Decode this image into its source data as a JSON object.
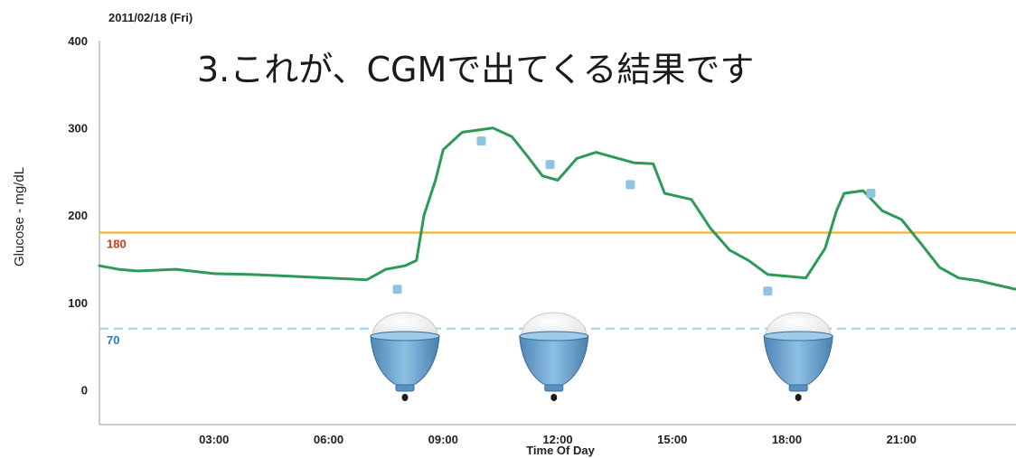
{
  "chart_data": {
    "type": "line",
    "date": "2011/02/18 (Fri)",
    "title": "3.これが、CGMで出てくる結果です",
    "xlabel": "Time Of Day",
    "ylabel": "Glucose - mg/dL",
    "ylim": [
      -40,
      400
    ],
    "xlim": [
      0,
      24
    ],
    "y_ticks": [
      "400",
      "300",
      "200",
      "100",
      "0"
    ],
    "x_ticks": [
      "03:00",
      "06:00",
      "09:00",
      "12:00",
      "15:00",
      "18:00",
      "21:00"
    ],
    "x_tick_values": [
      3,
      6,
      9,
      12,
      15,
      18,
      21
    ],
    "y_tick_values": [
      400,
      300,
      200,
      100,
      0
    ],
    "reference_lines": [
      {
        "label": "180",
        "value": 180,
        "color": "#f2b233",
        "label_color": "#d23a17",
        "style": "solid"
      },
      {
        "label": "70",
        "value": 70,
        "color": "#a9d3ea",
        "label_color": "#2d79bd",
        "style": "dashed"
      }
    ],
    "series": [
      {
        "color": "#2e9a58",
        "x": [
          0,
          0.5,
          1,
          2,
          3,
          4,
          5,
          6,
          7,
          7.5,
          8,
          8.3,
          8.5,
          8.8,
          9,
          9.5,
          10,
          10.3,
          10.8,
          11.2,
          11.6,
          12,
          12.5,
          13,
          13.5,
          14,
          14.5,
          14.8,
          15.5,
          16,
          16.5,
          17,
          17.5,
          18,
          18.5,
          19,
          19.3,
          19.5,
          20,
          20.5,
          21,
          21.5,
          22,
          22.5,
          23,
          23.5,
          24
        ],
        "y": [
          142,
          138,
          136,
          138,
          133,
          132,
          130,
          128,
          126,
          138,
          142,
          148,
          200,
          240,
          275,
          295,
          298,
          300,
          290,
          268,
          245,
          240,
          265,
          272,
          266,
          260,
          259,
          225,
          218,
          185,
          160,
          148,
          132,
          130,
          128,
          162,
          205,
          225,
          228,
          205,
          195,
          168,
          140,
          128,
          125,
          120,
          115
        ]
      }
    ],
    "markers": {
      "color": "#8fc4df",
      "x": [
        7.8,
        10,
        11.8,
        13.9,
        17.5,
        20.2
      ],
      "y": [
        115,
        285,
        258,
        235,
        113,
        225
      ]
    },
    "meals": {
      "x": [
        8,
        11.9,
        18.3
      ],
      "icon": "rice-bowl-icon"
    },
    "grid": false
  }
}
